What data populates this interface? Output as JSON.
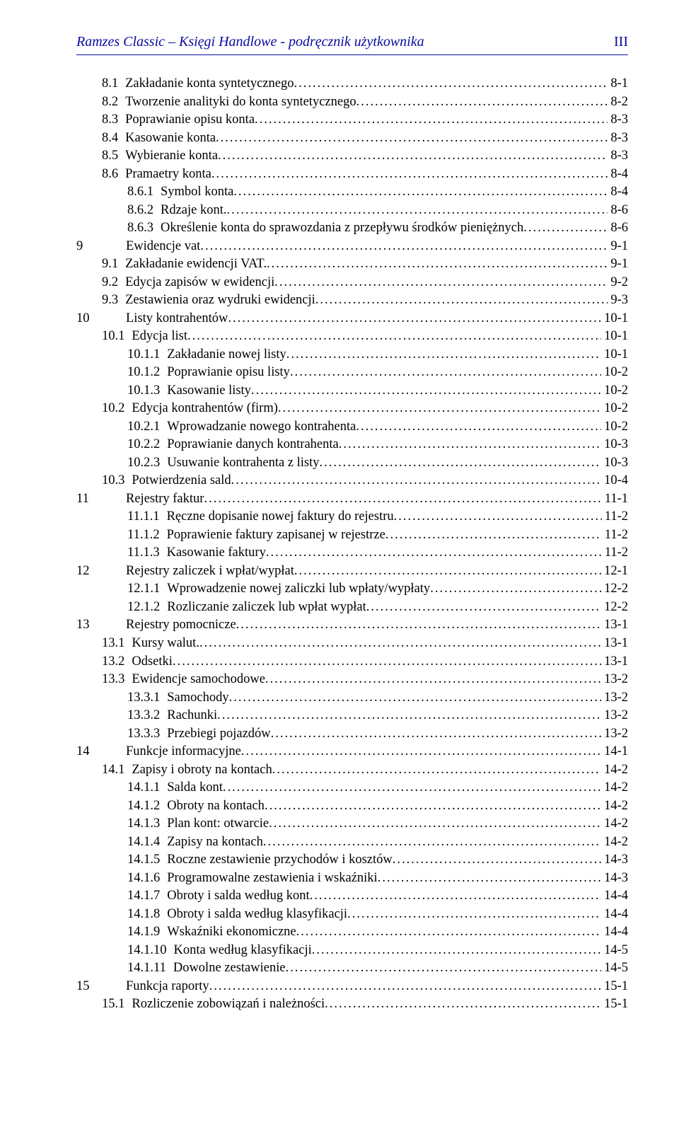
{
  "header": {
    "title": "Ramzes Classic – Księgi Handlowe - podręcznik użytkownika",
    "page_roman": "III"
  },
  "style": {
    "header_color": "#0a0aa0",
    "text_color": "#000000",
    "background": "#ffffff",
    "font_family": "Times New Roman",
    "body_fontsize_pt": 14,
    "header_fontsize_pt": 15
  },
  "toc": [
    {
      "indent": 1,
      "num": "8.1",
      "label": "Zakładanie konta syntetycznego",
      "page": "8-1"
    },
    {
      "indent": 1,
      "num": "8.2",
      "label": "Tworzenie analityki do konta syntetycznego",
      "page": "8-2"
    },
    {
      "indent": 1,
      "num": "8.3",
      "label": "Poprawianie opisu konta",
      "page": "8-3"
    },
    {
      "indent": 1,
      "num": "8.4",
      "label": "Kasowanie konta",
      "page": "8-3"
    },
    {
      "indent": 1,
      "num": "8.5",
      "label": "Wybieranie konta",
      "page": "8-3"
    },
    {
      "indent": 1,
      "num": "8.6",
      "label": "Pramaetry konta",
      "page": "8-4"
    },
    {
      "indent": 2,
      "num": "8.6.1",
      "label": "Symbol konta",
      "page": "8-4"
    },
    {
      "indent": 2,
      "num": "8.6.2",
      "label": "Rdzaje kont.",
      "page": "8-6"
    },
    {
      "indent": 2,
      "num": "8.6.3",
      "label": "Określenie konta do sprawozdania z przepływu środków pieniężnych",
      "page": "8-6"
    },
    {
      "indent": 0,
      "num": "9",
      "label": "Ewidencje vat",
      "page": "9-1"
    },
    {
      "indent": 1,
      "num": "9.1",
      "label": "Zakładanie ewidencji VAT. ",
      "page": "9-1"
    },
    {
      "indent": 1,
      "num": "9.2",
      "label": "Edycja zapisów w ewidencji",
      "page": "9-2"
    },
    {
      "indent": 1,
      "num": "9.3",
      "label": "Zestawienia oraz wydruki ewidencji",
      "page": "9-3"
    },
    {
      "indent": 0,
      "num": "10",
      "label": "Listy kontrahentów",
      "page": "10-1"
    },
    {
      "indent": 1,
      "num": "10.1",
      "label": "Edycja list",
      "page": "10-1"
    },
    {
      "indent": 2,
      "num": "10.1.1",
      "label": "Zakładanie nowej listy",
      "page": "10-1"
    },
    {
      "indent": 2,
      "num": "10.1.2",
      "label": "Poprawianie opisu listy",
      "page": "10-2"
    },
    {
      "indent": 2,
      "num": "10.1.3",
      "label": "Kasowanie listy",
      "page": "10-2"
    },
    {
      "indent": 1,
      "num": "10.2",
      "label": "Edycja kontrahentów  (firm)",
      "page": "10-2"
    },
    {
      "indent": 2,
      "num": "10.2.1",
      "label": "Wprowadzanie nowego kontrahenta",
      "page": "10-2"
    },
    {
      "indent": 2,
      "num": "10.2.2",
      "label": "Poprawianie danych kontrahenta",
      "page": "10-3"
    },
    {
      "indent": 2,
      "num": "10.2.3",
      "label": "Usuwanie kontrahenta z listy",
      "page": "10-3"
    },
    {
      "indent": 1,
      "num": "10.3",
      "label": "Potwierdzenia sald",
      "page": "10-4"
    },
    {
      "indent": 0,
      "num": "11",
      "label": "Rejestry  faktur",
      "page": "11-1"
    },
    {
      "indent": 2,
      "num": "11.1.1",
      "label": "Ręczne dopisanie  nowej faktury do rejestru",
      "page": "11-2"
    },
    {
      "indent": 2,
      "num": "11.1.2",
      "label": "Poprawienie faktury zapisanej w rejestrze",
      "page": "11-2"
    },
    {
      "indent": 2,
      "num": "11.1.3",
      "label": "Kasowanie faktury",
      "page": "11-2"
    },
    {
      "indent": 0,
      "num": "12",
      "label": "Rejestry zaliczek i wpłat/wypłat",
      "page": "12-1"
    },
    {
      "indent": 2,
      "num": "12.1.1",
      "label": "Wprowadzenie nowej zaliczki lub wpłaty/wypłaty",
      "page": "12-2"
    },
    {
      "indent": 2,
      "num": "12.1.2",
      "label": "Rozliczanie zaliczek lub wpłat wypłat",
      "page": "12-2"
    },
    {
      "indent": 0,
      "num": "13",
      "label": "Rejestry pomocnicze",
      "page": "13-1"
    },
    {
      "indent": 1,
      "num": "13.1",
      "label": "Kursy walut.",
      "page": "13-1"
    },
    {
      "indent": 1,
      "num": "13.2",
      "label": "Odsetki",
      "page": "13-1"
    },
    {
      "indent": 1,
      "num": "13.3",
      "label": "Ewidencje samochodowe",
      "page": "13-2"
    },
    {
      "indent": 2,
      "num": "13.3.1",
      "label": "Samochody",
      "page": "13-2"
    },
    {
      "indent": 2,
      "num": "13.3.2",
      "label": "Rachunki",
      "page": "13-2"
    },
    {
      "indent": 2,
      "num": "13.3.3",
      "label": "Przebiegi pojazdów",
      "page": "13-2"
    },
    {
      "indent": 0,
      "num": "14",
      "label": "Funkcje informacyjne",
      "page": "14-1"
    },
    {
      "indent": 1,
      "num": "14.1",
      "label": "Zapisy i obroty na kontach",
      "page": "14-2"
    },
    {
      "indent": 2,
      "num": "14.1.1",
      "label": "Salda kont",
      "page": "14-2"
    },
    {
      "indent": 2,
      "num": "14.1.2",
      "label": "Obroty na kontach",
      "page": "14-2"
    },
    {
      "indent": 2,
      "num": "14.1.3",
      "label": "Plan kont: otwarcie",
      "page": "14-2"
    },
    {
      "indent": 2,
      "num": "14.1.4",
      "label": "Zapisy na kontach",
      "page": "14-2"
    },
    {
      "indent": 2,
      "num": "14.1.5",
      "label": "Roczne zestawienie przychodów i kosztów",
      "page": "14-3"
    },
    {
      "indent": 2,
      "num": "14.1.6",
      "label": "Programowalne zestawienia i wskaźniki",
      "page": "14-3"
    },
    {
      "indent": 2,
      "num": "14.1.7",
      "label": "Obroty i salda według kont",
      "page": "14-4"
    },
    {
      "indent": 2,
      "num": "14.1.8",
      "label": "Obroty i salda według klasyfikacji",
      "page": "14-4"
    },
    {
      "indent": 2,
      "num": "14.1.9",
      "label": "Wskaźniki ekonomiczne",
      "page": "14-4"
    },
    {
      "indent": 2,
      "num": "14.1.10",
      "label": "Konta według klasyfikacji",
      "page": "14-5"
    },
    {
      "indent": 2,
      "num": "14.1.11",
      "label": "Dowolne zestawienie",
      "page": "14-5"
    },
    {
      "indent": 0,
      "num": "15",
      "label": "Funkcja raporty",
      "page": "15-1"
    },
    {
      "indent": 1,
      "num": "15.1",
      "label": "Rozliczenie zobowiązań i należności",
      "page": "15-1"
    }
  ]
}
